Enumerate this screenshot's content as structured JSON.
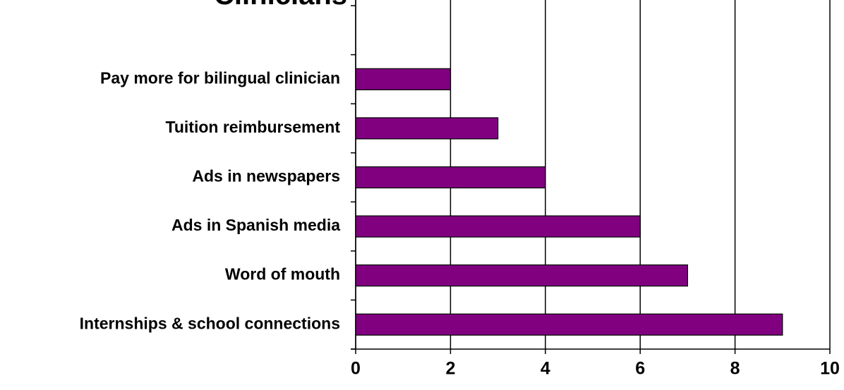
{
  "chart_data": {
    "type": "bar",
    "orientation": "horizontal",
    "title": "Clinicians",
    "categories": [
      null,
      "Pay more for bilingual clinician",
      "Tuition reimbursement",
      "Ads in newspapers",
      "Ads in Spanish media",
      "Word of mouth",
      "Internships & school connections"
    ],
    "values": [
      null,
      2,
      3,
      4,
      6,
      7,
      9
    ],
    "color": "#800080",
    "xlim": [
      0,
      10
    ],
    "xticks": [
      0,
      2,
      4,
      6,
      8,
      10
    ],
    "grid": true
  }
}
